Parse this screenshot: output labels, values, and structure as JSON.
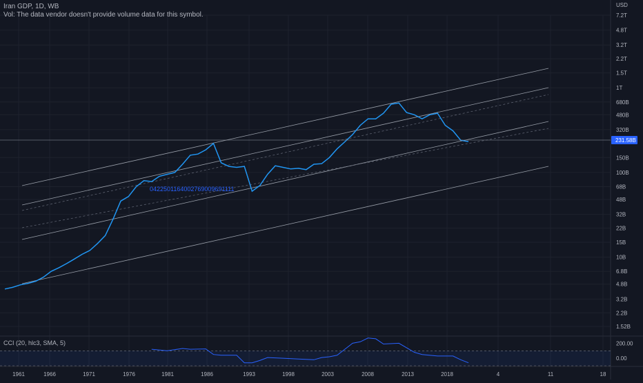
{
  "header": {
    "title": "Iran GDP, 1D, WB",
    "vol_text": "Vol: The data vendor doesn't provide volume data for this symbol."
  },
  "price_axis": {
    "currency": "USD",
    "labels": [
      "7.2T",
      "4.8T",
      "3.2T",
      "2.2T",
      "1.5T",
      "1T",
      "680B",
      "480B",
      "320B",
      "150B",
      "100B",
      "68B",
      "48B",
      "32B",
      "22B",
      "15B",
      "10B",
      "6.8B",
      "4.8B",
      "3.2B",
      "2.2B",
      "1.52B"
    ],
    "current_price": "231.58B"
  },
  "cci_axis": {
    "labels": [
      "200.00",
      "0.00"
    ]
  },
  "time_axis": {
    "labels": [
      "1961",
      "1966",
      "1971",
      "1976",
      "1981",
      "1986",
      "1993",
      "1998",
      "2003",
      "2008",
      "2013",
      "2018",
      "4",
      "11",
      "18"
    ]
  },
  "annotation": {
    "text": "0422501164002769009691111"
  },
  "cci_indicator": {
    "label": "CCI (20, hlc3, SMA, 5)"
  },
  "colors": {
    "background": "#131722",
    "line": "#2196f3",
    "channel": "#9aa0aa",
    "price_tag": "#2962ff",
    "cci_band": "#2962ff"
  },
  "chart_data": {
    "type": "line",
    "title": "Iran GDP, 1D, WB",
    "scale": "log",
    "ylabel": "USD",
    "series": [
      {
        "x": [
          1960,
          1961,
          1962,
          1963,
          1964,
          1965,
          1966,
          1967,
          1968,
          1969,
          1970,
          1971,
          1972,
          1973,
          1974,
          1975,
          1976,
          1977,
          1978,
          1979,
          1980,
          1981,
          1982,
          1983,
          1984,
          1985,
          1986,
          1987,
          1988,
          1989,
          1990,
          1991,
          1992,
          1993,
          1994,
          1995,
          1996,
          1997,
          1998,
          1999,
          2000,
          2001,
          2002,
          2003,
          2004,
          2005,
          2006,
          2007,
          2008,
          2009,
          2010,
          2011,
          2012,
          2013,
          2014,
          2015,
          2016,
          2017,
          2018,
          2019,
          2020
        ],
        "values": [
          4.2,
          4.4,
          4.7,
          4.9,
          5.2,
          5.8,
          6.8,
          7.5,
          8.4,
          9.5,
          10.8,
          12.0,
          14.5,
          18.0,
          28.0,
          46.0,
          52.0,
          68.0,
          80.0,
          78.0,
          90.0,
          95.0,
          100.0,
          125.0,
          160.0,
          165.0,
          185.0,
          220.0,
          130.0,
          118.0,
          115.0,
          118.0,
          60.0,
          70.0,
          95.0,
          120.0,
          115.0,
          110.0,
          112.0,
          108.0,
          125.0,
          127.0,
          150.0,
          190.0,
          230.0,
          280.0,
          360.0,
          430.0,
          430.0,
          500.0,
          640.0,
          660.0,
          510.0,
          480.0,
          430.0,
          480.0,
          500.0,
          360.0,
          310.0,
          240.0,
          231.58
        ]
      }
    ],
    "cci_series": {
      "name": "CCI (20, hlc3, SMA, 5)",
      "x": [
        1979,
        1981,
        1983,
        1984,
        1986,
        1987,
        1988,
        1990,
        1991,
        1992,
        1993,
        1994,
        1996,
        1998,
        2000,
        2001,
        2002,
        2003,
        2005,
        2006,
        2007,
        2008,
        2009,
        2011,
        2013,
        2014,
        2016,
        2018,
        2019,
        2020
      ],
      "values": [
        120,
        100,
        130,
        120,
        125,
        50,
        40,
        40,
        -60,
        -60,
        -30,
        10,
        0,
        -10,
        -20,
        10,
        20,
        40,
        200,
        220,
        270,
        260,
        190,
        200,
        80,
        50,
        30,
        30,
        -20,
        -60
      ]
    },
    "cci_range": [
      -100,
      250
    ],
    "cci_levels": [
      100,
      -100
    ]
  }
}
